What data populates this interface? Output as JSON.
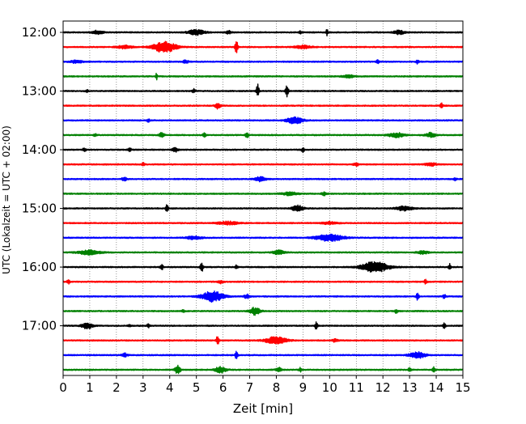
{
  "chart_data": {
    "type": "line",
    "title": "",
    "xlabel": "Zeit  [min]",
    "ylabel": "UTC (Lokalzeit = UTC + 02:00)",
    "xlim": [
      0,
      15
    ],
    "x_ticks": [
      0,
      1,
      2,
      3,
      4,
      5,
      6,
      7,
      8,
      9,
      10,
      11,
      12,
      13,
      14,
      15
    ],
    "x_tick_labels": [
      "0",
      "1",
      "2",
      "3",
      "4",
      "5",
      "6",
      "7",
      "8",
      "9",
      "10",
      "11",
      "12",
      "13",
      "14",
      "15"
    ],
    "y_tick_labels": [
      "12:00",
      "13:00",
      "14:00",
      "15:00",
      "16:00",
      "17:00"
    ],
    "x_grid": true,
    "trace_colors": [
      "#000000",
      "#ff0000",
      "#0000ff",
      "#008000"
    ],
    "traces": [
      {
        "start": "12:00",
        "events": [
          {
            "t": 1.3,
            "a": 0.25,
            "w": 0.2
          },
          {
            "t": 5.0,
            "a": 0.35,
            "w": 0.3
          },
          {
            "t": 6.2,
            "a": 0.2,
            "w": 0.1
          },
          {
            "t": 8.9,
            "a": 0.2,
            "w": 0.05
          },
          {
            "t": 9.9,
            "a": 0.7,
            "w": 0.03
          },
          {
            "t": 12.6,
            "a": 0.25,
            "w": 0.2
          }
        ]
      },
      {
        "start": "12:15",
        "events": [
          {
            "t": 2.3,
            "a": 0.2,
            "w": 0.3
          },
          {
            "t": 3.8,
            "a": 0.8,
            "w": 0.4
          },
          {
            "t": 6.5,
            "a": 1.0,
            "w": 0.05
          },
          {
            "t": 9.0,
            "a": 0.2,
            "w": 0.3
          }
        ]
      },
      {
        "start": "12:30",
        "events": [
          {
            "t": 0.5,
            "a": 0.2,
            "w": 0.2
          },
          {
            "t": 4.6,
            "a": 0.2,
            "w": 0.1
          },
          {
            "t": 11.8,
            "a": 0.3,
            "w": 0.05
          },
          {
            "t": 13.3,
            "a": 0.3,
            "w": 0.05
          }
        ]
      },
      {
        "start": "12:45",
        "events": [
          {
            "t": 3.5,
            "a": 0.6,
            "w": 0.03
          },
          {
            "t": 10.7,
            "a": 0.2,
            "w": 0.2
          }
        ]
      },
      {
        "start": "13:00",
        "events": [
          {
            "t": 0.9,
            "a": 0.2,
            "w": 0.05
          },
          {
            "t": 4.9,
            "a": 0.3,
            "w": 0.05
          },
          {
            "t": 7.3,
            "a": 0.9,
            "w": 0.05
          },
          {
            "t": 8.4,
            "a": 1.0,
            "w": 0.05
          }
        ]
      },
      {
        "start": "13:15",
        "events": [
          {
            "t": 5.8,
            "a": 0.4,
            "w": 0.1
          },
          {
            "t": 14.2,
            "a": 0.4,
            "w": 0.05
          }
        ]
      },
      {
        "start": "13:30",
        "events": [
          {
            "t": 3.2,
            "a": 0.2,
            "w": 0.05
          },
          {
            "t": 8.7,
            "a": 0.45,
            "w": 0.3
          }
        ]
      },
      {
        "start": "13:45",
        "events": [
          {
            "t": 1.2,
            "a": 0.2,
            "w": 0.05
          },
          {
            "t": 3.7,
            "a": 0.3,
            "w": 0.1
          },
          {
            "t": 5.3,
            "a": 0.3,
            "w": 0.05
          },
          {
            "t": 6.9,
            "a": 0.5,
            "w": 0.05
          },
          {
            "t": 12.5,
            "a": 0.3,
            "w": 0.3
          },
          {
            "t": 13.8,
            "a": 0.3,
            "w": 0.2
          }
        ]
      },
      {
        "start": "14:00",
        "events": [
          {
            "t": 0.8,
            "a": 0.3,
            "w": 0.05
          },
          {
            "t": 2.5,
            "a": 0.3,
            "w": 0.05
          },
          {
            "t": 4.2,
            "a": 0.3,
            "w": 0.1
          },
          {
            "t": 9.0,
            "a": 0.3,
            "w": 0.05
          }
        ]
      },
      {
        "start": "14:15",
        "events": [
          {
            "t": 3.0,
            "a": 0.2,
            "w": 0.05
          },
          {
            "t": 11.0,
            "a": 0.2,
            "w": 0.1
          },
          {
            "t": 13.8,
            "a": 0.2,
            "w": 0.2
          }
        ]
      },
      {
        "start": "14:30",
        "events": [
          {
            "t": 2.3,
            "a": 0.2,
            "w": 0.1
          },
          {
            "t": 7.4,
            "a": 0.3,
            "w": 0.2
          },
          {
            "t": 14.7,
            "a": 0.2,
            "w": 0.05
          }
        ]
      },
      {
        "start": "14:45",
        "events": [
          {
            "t": 8.5,
            "a": 0.2,
            "w": 0.3
          },
          {
            "t": 9.8,
            "a": 0.2,
            "w": 0.1
          }
        ]
      },
      {
        "start": "15:00",
        "events": [
          {
            "t": 3.9,
            "a": 0.5,
            "w": 0.05
          },
          {
            "t": 8.8,
            "a": 0.4,
            "w": 0.2
          },
          {
            "t": 12.8,
            "a": 0.3,
            "w": 0.3
          }
        ]
      },
      {
        "start": "15:15",
        "events": [
          {
            "t": 6.2,
            "a": 0.2,
            "w": 0.4
          },
          {
            "t": 10.0,
            "a": 0.15,
            "w": 0.3
          }
        ]
      },
      {
        "start": "15:30",
        "events": [
          {
            "t": 4.9,
            "a": 0.2,
            "w": 0.3
          },
          {
            "t": 10.0,
            "a": 0.45,
            "w": 0.5
          }
        ]
      },
      {
        "start": "15:45",
        "events": [
          {
            "t": 1.0,
            "a": 0.3,
            "w": 0.4
          },
          {
            "t": 8.1,
            "a": 0.3,
            "w": 0.2
          },
          {
            "t": 13.5,
            "a": 0.2,
            "w": 0.2
          }
        ]
      },
      {
        "start": "16:00",
        "events": [
          {
            "t": 3.7,
            "a": 0.4,
            "w": 0.05
          },
          {
            "t": 5.2,
            "a": 0.9,
            "w": 0.05
          },
          {
            "t": 6.5,
            "a": 0.3,
            "w": 0.05
          },
          {
            "t": 11.7,
            "a": 0.7,
            "w": 0.5
          },
          {
            "t": 14.5,
            "a": 0.4,
            "w": 0.05
          }
        ]
      },
      {
        "start": "16:15",
        "events": [
          {
            "t": 0.2,
            "a": 0.3,
            "w": 0.05
          },
          {
            "t": 5.9,
            "a": 0.2,
            "w": 0.1
          },
          {
            "t": 13.6,
            "a": 0.3,
            "w": 0.05
          }
        ]
      },
      {
        "start": "16:30",
        "events": [
          {
            "t": 5.6,
            "a": 0.7,
            "w": 0.4
          },
          {
            "t": 6.9,
            "a": 0.3,
            "w": 0.1
          },
          {
            "t": 13.3,
            "a": 0.5,
            "w": 0.05
          },
          {
            "t": 14.3,
            "a": 0.3,
            "w": 0.05
          }
        ]
      },
      {
        "start": "16:45",
        "events": [
          {
            "t": 4.5,
            "a": 0.2,
            "w": 0.05
          },
          {
            "t": 7.2,
            "a": 0.5,
            "w": 0.2
          },
          {
            "t": 12.5,
            "a": 0.3,
            "w": 0.05
          }
        ]
      },
      {
        "start": "17:00",
        "events": [
          {
            "t": 0.9,
            "a": 0.4,
            "w": 0.2
          },
          {
            "t": 2.5,
            "a": 0.2,
            "w": 0.05
          },
          {
            "t": 3.2,
            "a": 0.3,
            "w": 0.05
          },
          {
            "t": 9.5,
            "a": 0.5,
            "w": 0.05
          },
          {
            "t": 14.3,
            "a": 0.4,
            "w": 0.05
          }
        ]
      },
      {
        "start": "17:15",
        "events": [
          {
            "t": 5.8,
            "a": 0.7,
            "w": 0.05
          },
          {
            "t": 8.0,
            "a": 0.5,
            "w": 0.4
          },
          {
            "t": 10.2,
            "a": 0.2,
            "w": 0.1
          }
        ]
      },
      {
        "start": "17:30",
        "events": [
          {
            "t": 2.3,
            "a": 0.3,
            "w": 0.1
          },
          {
            "t": 6.5,
            "a": 0.5,
            "w": 0.05
          },
          {
            "t": 13.3,
            "a": 0.4,
            "w": 0.3
          }
        ]
      },
      {
        "start": "17:45",
        "events": [
          {
            "t": 4.3,
            "a": 0.6,
            "w": 0.1
          },
          {
            "t": 5.9,
            "a": 0.4,
            "w": 0.2
          },
          {
            "t": 8.1,
            "a": 0.3,
            "w": 0.1
          },
          {
            "t": 8.9,
            "a": 0.3,
            "w": 0.05
          },
          {
            "t": 13.0,
            "a": 0.3,
            "w": 0.05
          },
          {
            "t": 13.9,
            "a": 0.4,
            "w": 0.05
          }
        ]
      }
    ]
  }
}
